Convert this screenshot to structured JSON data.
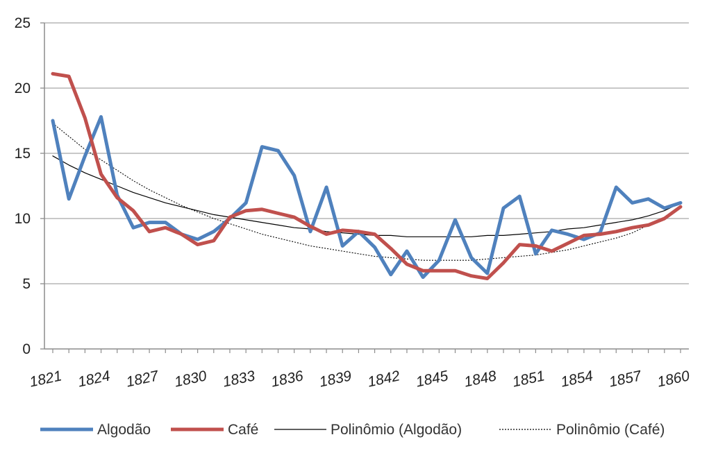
{
  "chart_data": {
    "type": "line",
    "x": [
      1821,
      1822,
      1823,
      1824,
      1825,
      1826,
      1827,
      1828,
      1829,
      1830,
      1831,
      1832,
      1833,
      1834,
      1835,
      1836,
      1837,
      1838,
      1839,
      1840,
      1841,
      1842,
      1843,
      1844,
      1845,
      1846,
      1847,
      1848,
      1849,
      1850,
      1851,
      1852,
      1853,
      1854,
      1855,
      1856,
      1857,
      1858,
      1859,
      1860
    ],
    "x_ticks": [
      "1821",
      "1824",
      "1827",
      "1830",
      "1833",
      "1836",
      "1839",
      "1842",
      "1845",
      "1848",
      "1851",
      "1854",
      "1857",
      "1860"
    ],
    "y_ticks": [
      "0",
      "5",
      "10",
      "15",
      "20",
      "25"
    ],
    "ylim": [
      0,
      25
    ],
    "grid": true,
    "legend_position": "bottom",
    "series": [
      {
        "name": "Algodão",
        "color": "#4f81bd",
        "style": "solid-thick",
        "values": [
          17.5,
          11.5,
          14.8,
          17.8,
          11.8,
          9.3,
          9.7,
          9.7,
          8.8,
          8.4,
          9.0,
          10.0,
          11.2,
          15.5,
          15.2,
          13.3,
          9.0,
          12.4,
          7.9,
          9.0,
          7.8,
          5.7,
          7.5,
          5.5,
          6.8,
          9.9,
          7.0,
          5.8,
          10.8,
          11.7,
          7.3,
          9.1,
          8.8,
          8.4,
          8.9,
          12.4,
          11.2,
          11.5,
          10.8,
          11.2
        ]
      },
      {
        "name": "Café",
        "color": "#c0504d",
        "style": "solid-thick",
        "values": [
          21.1,
          20.9,
          17.7,
          13.4,
          11.6,
          10.6,
          9.0,
          9.3,
          8.8,
          8.0,
          8.3,
          10.1,
          10.6,
          10.7,
          10.4,
          10.1,
          9.4,
          8.8,
          9.1,
          9.0,
          8.8,
          7.7,
          6.5,
          6.0,
          6.0,
          6.0,
          5.6,
          5.4,
          6.6,
          8.0,
          7.9,
          7.5,
          8.1,
          8.7,
          8.8,
          9.0,
          9.3,
          9.5,
          10.0,
          10.9
        ]
      },
      {
        "name": "Polinômio (Algodão)",
        "color": "#000000",
        "style": "thin-solid",
        "values": [
          14.8,
          14.1,
          13.5,
          13.0,
          12.5,
          12.0,
          11.6,
          11.2,
          10.9,
          10.6,
          10.3,
          10.1,
          9.9,
          9.7,
          9.5,
          9.3,
          9.2,
          9.0,
          8.9,
          8.8,
          8.7,
          8.7,
          8.6,
          8.6,
          8.6,
          8.6,
          8.6,
          8.7,
          8.7,
          8.8,
          8.9,
          9.0,
          9.2,
          9.3,
          9.5,
          9.7,
          9.9,
          10.2,
          10.6,
          11.2
        ]
      },
      {
        "name": "Polinômio (Café)",
        "color": "#000000",
        "style": "dotted",
        "values": [
          17.3,
          16.3,
          15.3,
          14.5,
          13.7,
          12.9,
          12.2,
          11.6,
          11.0,
          10.5,
          10.0,
          9.6,
          9.2,
          8.8,
          8.5,
          8.2,
          7.9,
          7.7,
          7.5,
          7.3,
          7.1,
          7.0,
          6.9,
          6.8,
          6.8,
          6.8,
          6.8,
          6.9,
          7.0,
          7.1,
          7.2,
          7.4,
          7.6,
          7.9,
          8.2,
          8.5,
          8.9,
          9.5,
          10.1,
          11.0
        ]
      }
    ]
  }
}
